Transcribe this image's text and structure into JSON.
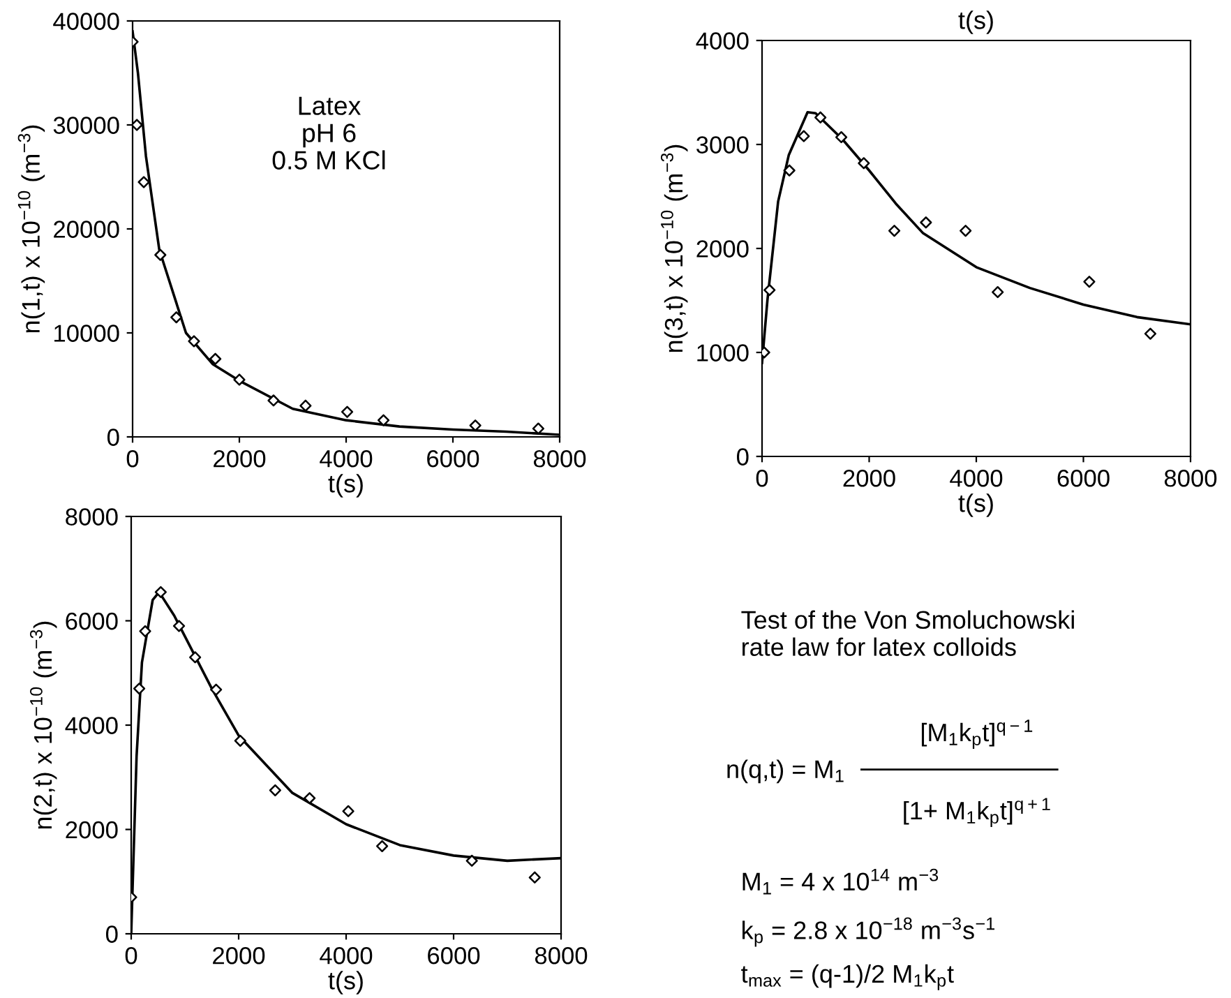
{
  "chart_data": [
    {
      "type": "scatter",
      "xlabel": "t(s)",
      "ylabel": "n(1,t) x 10$^{−10}$ (m$^{−3}$)",
      "xlim": [
        0,
        8000
      ],
      "ylim": [
        0,
        40000
      ],
      "xticks": [
        0,
        2000,
        4000,
        6000,
        8000
      ],
      "yticks": [
        0,
        10000,
        20000,
        30000,
        40000
      ],
      "grid": false,
      "annotations": [
        "Latex\npH 6\n0.5 M KCl"
      ],
      "series": [
        {
          "type": "scatter",
          "marker": "diamond",
          "color": "#000000",
          "x": [
            0,
            80,
            210,
            520,
            820,
            1150,
            1550,
            2000,
            2640,
            3240,
            4020,
            4700,
            6420,
            7600
          ],
          "values": [
            38000,
            30000,
            24500,
            17500,
            11500,
            9200,
            7500,
            5500,
            3500,
            3000,
            2400,
            1600,
            1100,
            800
          ]
        },
        {
          "type": "line",
          "marker": "none",
          "color": "#000000",
          "x": [
            0,
            100,
            250,
            500,
            1000,
            1500,
            2000,
            3000,
            4000,
            5000,
            6000,
            7000,
            8000
          ],
          "values": [
            39000,
            35000,
            27000,
            18000,
            10000,
            7000,
            5400,
            2700,
            1600,
            1000,
            700,
            500,
            200
          ]
        }
      ]
    },
    {
      "type": "scatter",
      "title": "t(s)",
      "xlabel": "t(s)",
      "ylabel": "n(3,t) x 10$^{−10}$ (m$^{−3}$)",
      "xlim": [
        0,
        8000
      ],
      "ylim": [
        0,
        4000
      ],
      "xticks": [
        0,
        2000,
        4000,
        6000,
        8000
      ],
      "yticks": [
        0,
        1000,
        2000,
        3000,
        4000
      ],
      "grid": false,
      "series": [
        {
          "type": "scatter",
          "marker": "diamond",
          "color": "#000000",
          "x": [
            40,
            140,
            510,
            780,
            1090,
            1480,
            1900,
            2470,
            3060,
            3800,
            4400,
            6110,
            7250
          ],
          "values": [
            1000,
            1600,
            2750,
            3080,
            3260,
            3070,
            2820,
            2170,
            2250,
            2170,
            1580,
            1680,
            1180
          ]
        },
        {
          "type": "line",
          "marker": "none",
          "color": "#000000",
          "x": [
            0,
            100,
            300,
            500,
            850,
            1000,
            1500,
            2000,
            2500,
            3000,
            4000,
            5000,
            6000,
            7000,
            8000
          ],
          "values": [
            900,
            1500,
            2450,
            2900,
            3310,
            3300,
            3050,
            2750,
            2430,
            2150,
            1820,
            1620,
            1460,
            1340,
            1270
          ]
        }
      ]
    },
    {
      "type": "scatter",
      "xlabel": "t(s)",
      "ylabel": "n(2,t) x 10$^{−10}$ (m$^{−3}$)",
      "xlim": [
        0,
        8000
      ],
      "ylim": [
        0,
        8000
      ],
      "xticks": [
        0,
        2000,
        4000,
        6000,
        8000
      ],
      "yticks": [
        0,
        2000,
        4000,
        6000,
        8000
      ],
      "grid": false,
      "series": [
        {
          "type": "scatter",
          "marker": "diamond",
          "color": "#000000",
          "x": [
            0,
            150,
            260,
            550,
            890,
            1190,
            1580,
            2030,
            2680,
            3320,
            4040,
            4670,
            6340,
            7510
          ],
          "values": [
            700,
            4700,
            5800,
            6550,
            5900,
            5300,
            4680,
            3700,
            2750,
            2600,
            2350,
            1680,
            1400,
            1080
          ]
        },
        {
          "type": "line",
          "marker": "none",
          "color": "#000000",
          "x": [
            0,
            100,
            200,
            400,
            520,
            800,
            1000,
            1500,
            2000,
            3000,
            4000,
            5000,
            6000,
            7000,
            8000
          ],
          "values": [
            0,
            3400,
            5200,
            6400,
            6550,
            6100,
            5700,
            4700,
            3800,
            2700,
            2100,
            1700,
            1500,
            1400,
            1450
          ]
        }
      ]
    },
    {
      "type": "other",
      "annotations": [
        "Test of the Von Smoluchowski\nrate law for latex colloids",
        "n(q,t) = M$_{1}$",
        "[M$_{1}$k$_{p}$t]$^{q−1}$",
        "[1+ M$_{1}$k$_{p}$t]$^{q+1}$",
        "M$_{1}$ = 4 x 10$^{14}$ m$^{−3}$",
        "k$_{p}$ = 2.8 x 10$^{−18}$ m$^{−3}$s$^{−1}$",
        "t$_{max}$ = (q-1)/2 M$_{1}$k$_{p}$t"
      ]
    }
  ]
}
